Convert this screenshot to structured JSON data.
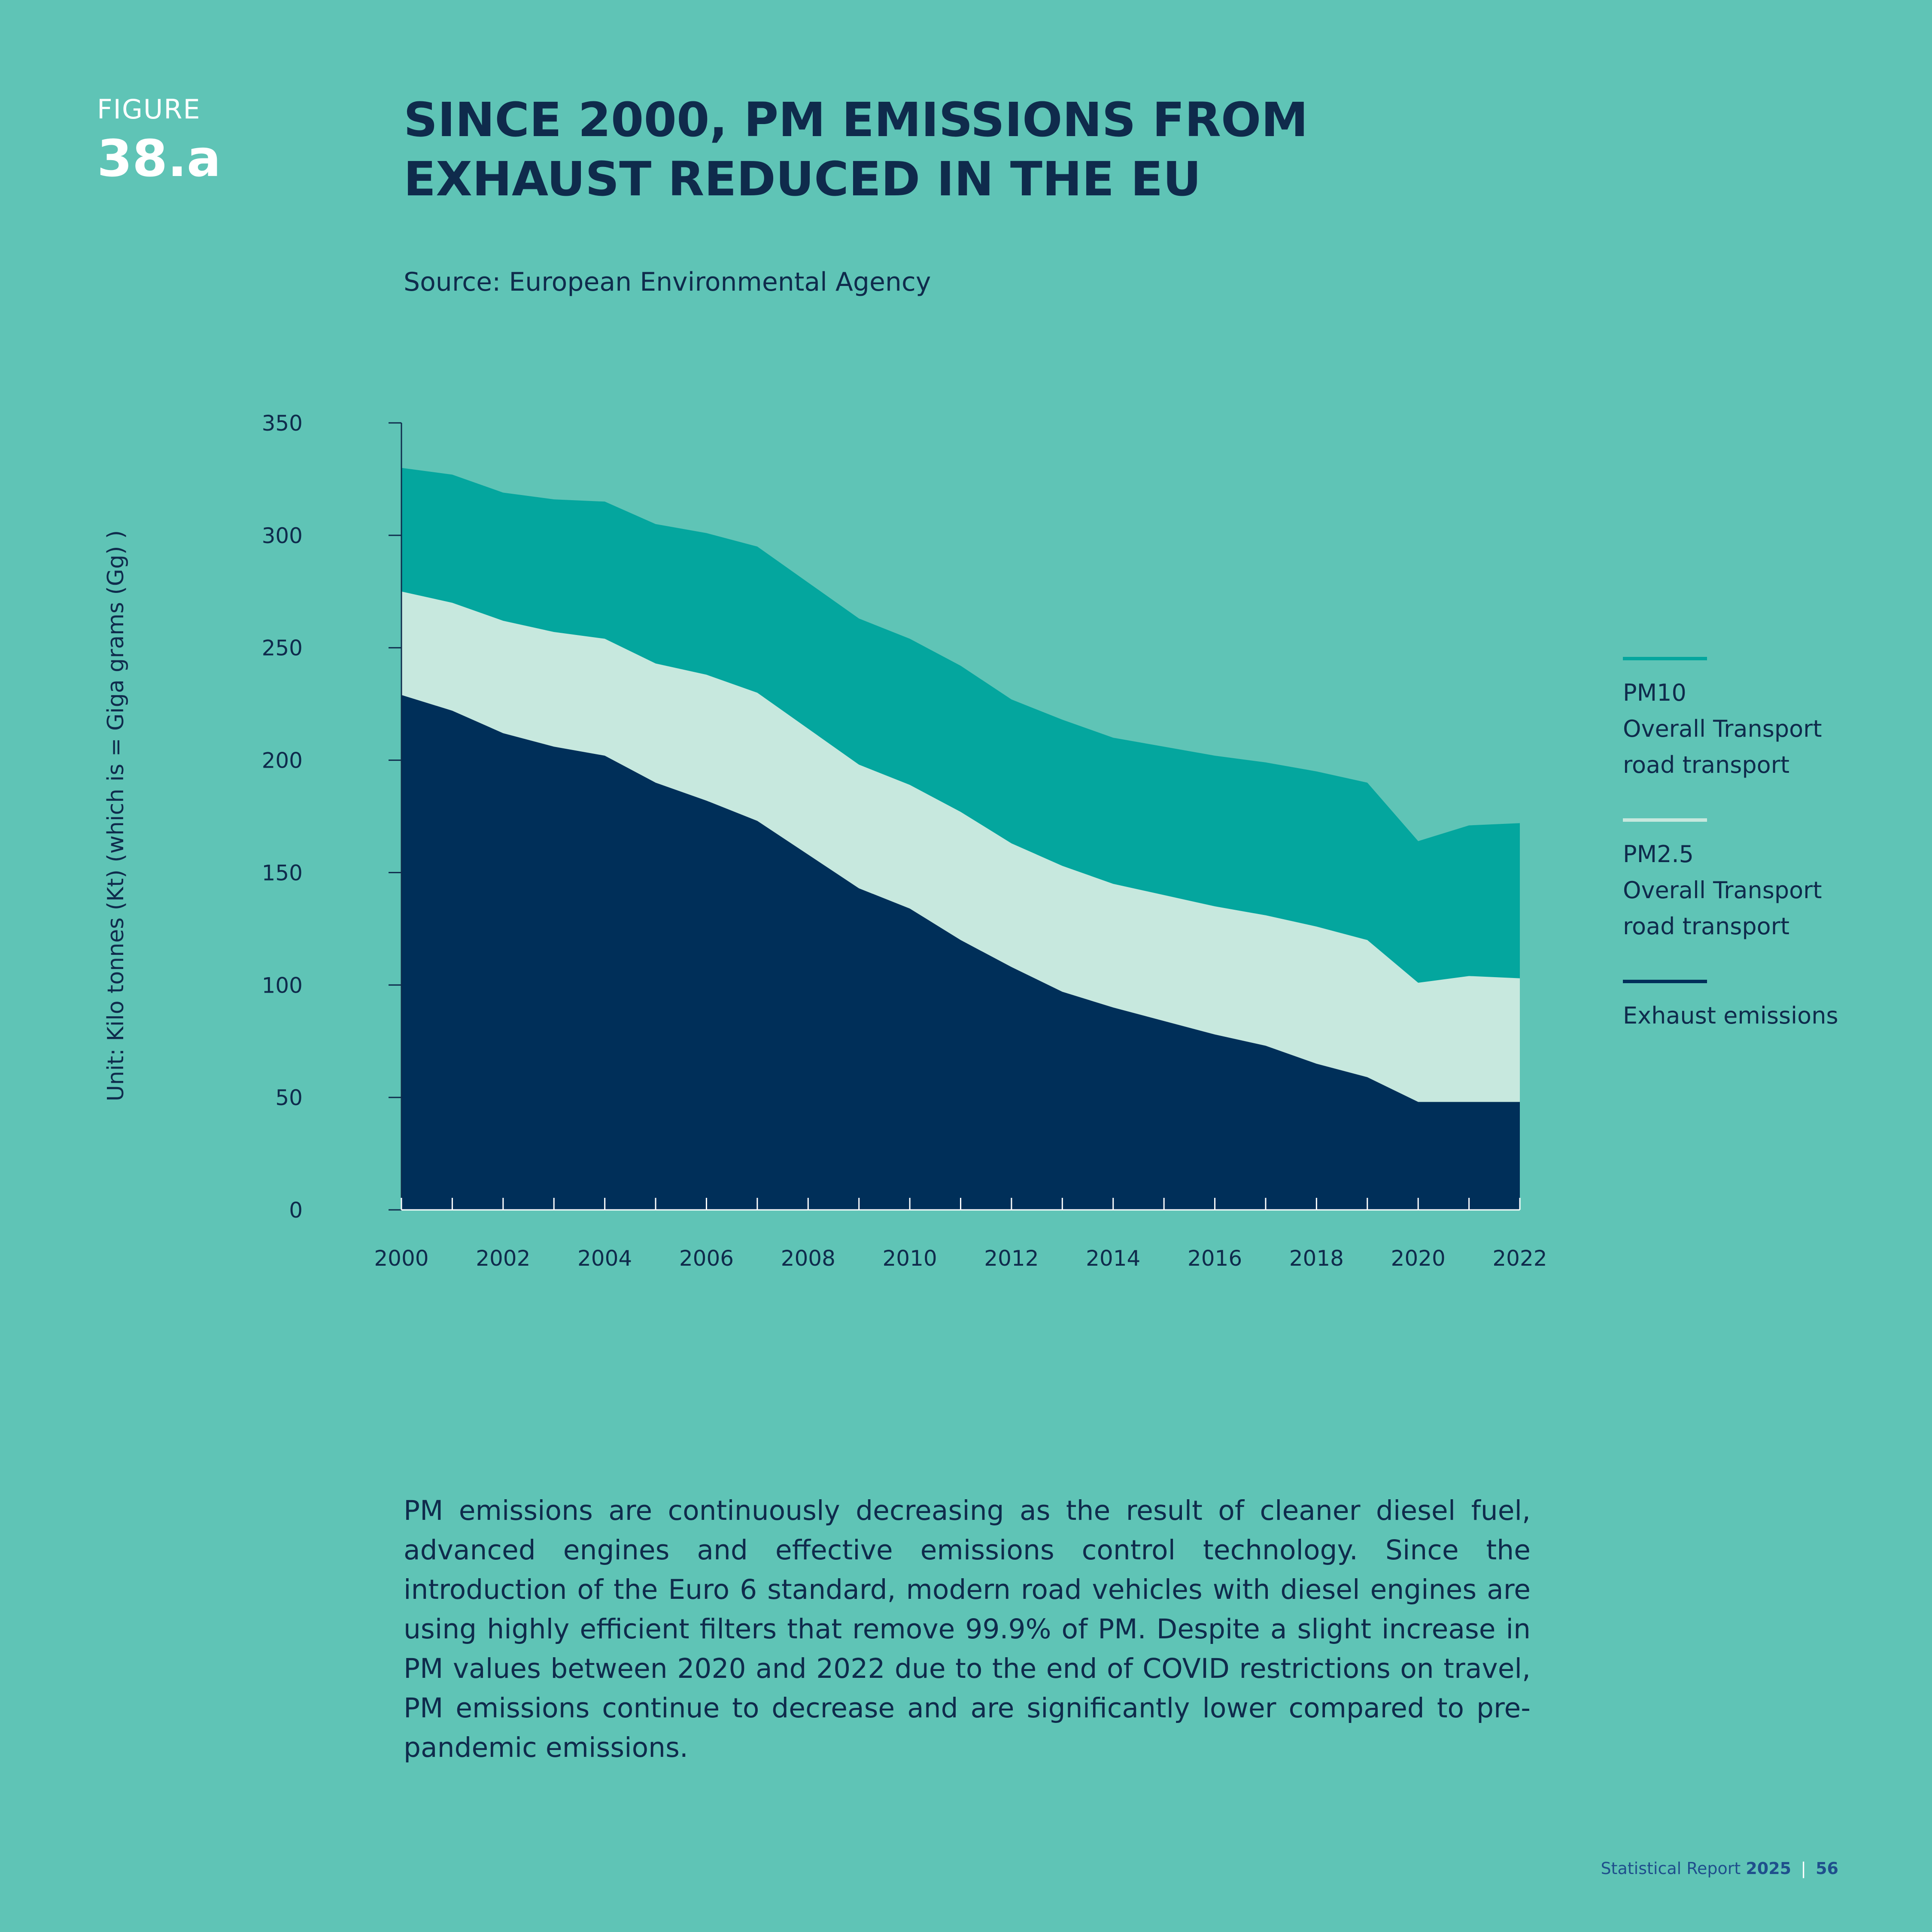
{
  "figure": {
    "label": "FIGURE",
    "number": "38.a"
  },
  "title": "SINCE 2000, PM EMISSIONS FROM EXHAUST REDUCED IN THE EU",
  "source": "Source: European Environmental Agency",
  "colors": {
    "background": "#5fc4b6",
    "pm10": "#04a69e",
    "pm25": "#c7e8de",
    "exhaust": "#002f59",
    "text": "#0f2b4c"
  },
  "chart_data": {
    "type": "area",
    "stacked": false,
    "ylabel": "Unit: Kilo tonnes (Kt) (which is = Giga grams (Gg) )",
    "xlabel": "",
    "ylim": [
      0,
      350
    ],
    "yticks": [
      0,
      50,
      100,
      150,
      200,
      250,
      300,
      350
    ],
    "xticks": [
      2000,
      2002,
      2004,
      2006,
      2008,
      2010,
      2012,
      2014,
      2016,
      2018,
      2020,
      2022
    ],
    "x": [
      2000,
      2001,
      2002,
      2003,
      2004,
      2005,
      2006,
      2007,
      2008,
      2009,
      2010,
      2011,
      2012,
      2013,
      2014,
      2015,
      2016,
      2017,
      2018,
      2019,
      2020,
      2021,
      2022
    ],
    "series": [
      {
        "name": "PM10 Overall Transport road transport",
        "values": [
          330,
          327,
          319,
          316,
          315,
          305,
          301,
          295,
          279,
          263,
          254,
          242,
          227,
          218,
          210,
          206,
          202,
          199,
          195,
          190,
          164,
          171,
          172
        ]
      },
      {
        "name": "PM2.5 Overall Transport road transport",
        "values": [
          275,
          270,
          262,
          257,
          254,
          243,
          238,
          230,
          214,
          198,
          189,
          177,
          163,
          153,
          145,
          140,
          135,
          131,
          126,
          120,
          101,
          104,
          103
        ]
      },
      {
        "name": "Exhaust emissions",
        "values": [
          229,
          222,
          212,
          206,
          202,
          190,
          182,
          173,
          158,
          143,
          134,
          120,
          108,
          97,
          90,
          84,
          78,
          73,
          65,
          59,
          48,
          48,
          48
        ]
      }
    ],
    "legend_position": "right"
  },
  "legend": [
    {
      "lines": [
        "PM10",
        "Overall Transport",
        "road transport"
      ]
    },
    {
      "lines": [
        "PM2.5",
        "Overall Transport",
        "road transport"
      ]
    },
    {
      "lines": [
        "Exhaust emissions"
      ]
    }
  ],
  "body_text": "PM emissions are continuously decreasing as the result of cleaner diesel fuel, advanced engines and effective emissions control technology. Since the introduction of the Euro 6 standard, modern road vehicles with diesel engines are using highly efficient filters that remove 99.9% of PM. Despite a slight increase in PM values between 2020 and 2022 due to the end of COVID restrictions on travel, PM emissions continue to decrease and are significantly lower compared to pre-pandemic emissions.",
  "footer": {
    "report": "Statistical Report",
    "year": "2025",
    "separator": "|",
    "page": "56"
  }
}
